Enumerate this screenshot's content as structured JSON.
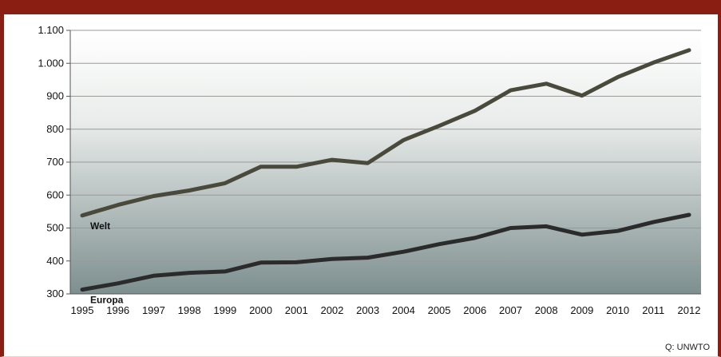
{
  "chart_data": {
    "type": "line",
    "x": [
      "1995",
      "1996",
      "1997",
      "1998",
      "1999",
      "2000",
      "2001",
      "2002",
      "2003",
      "2004",
      "2005",
      "2006",
      "2007",
      "2008",
      "2009",
      "2010",
      "2011",
      "2012"
    ],
    "series": [
      {
        "name": "Welt",
        "color": "#4a4a3c",
        "values": [
          538,
          570,
          597,
          614,
          636,
          686,
          686,
          707,
          697,
          767,
          810,
          856,
          918,
          938,
          902,
          958,
          1002,
          1040
        ]
      },
      {
        "name": "Europa",
        "color": "#2b2b2b",
        "values": [
          313,
          332,
          355,
          364,
          368,
          395,
          396,
          406,
          410,
          428,
          451,
          470,
          500,
          505,
          480,
          491,
          518,
          540
        ]
      }
    ],
    "yticks": [
      "300",
      "400",
      "500",
      "600",
      "700",
      "800",
      "900",
      "1.000",
      "1.100"
    ],
    "ylim": [
      300,
      1100
    ],
    "grid": true,
    "legend": "inline labels"
  },
  "source": "Q: UNWTO",
  "colors": {
    "frame": "#8b1e12",
    "plot_top": "#ffffff",
    "plot_bottom": "#7d8f8f"
  }
}
